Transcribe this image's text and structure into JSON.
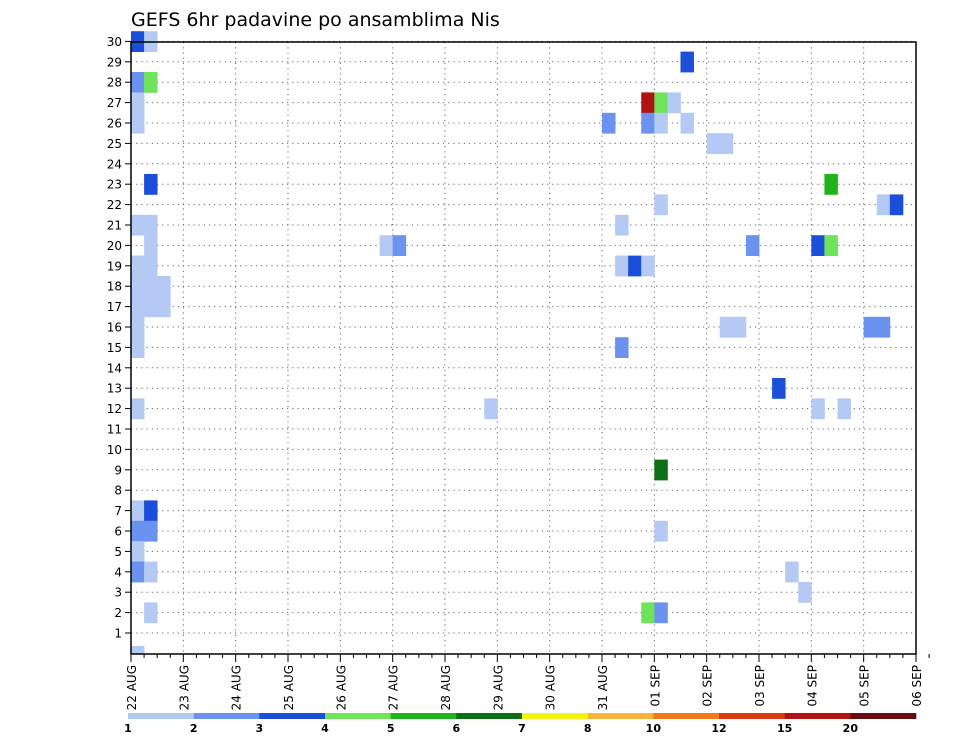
{
  "chart_data": {
    "type": "heatmap",
    "title": "GEFS 6hr padavine po ansamblima Nis",
    "xlabel": "",
    "ylabel": "",
    "x_ticks": [
      "22 AUG",
      "23 AUG",
      "24 AUG",
      "25 AUG",
      "26 AUG",
      "27 AUG",
      "28 AUG",
      "29 AUG",
      "30 AUG",
      "31 AUG",
      "01 SEP",
      "02 SEP",
      "03 SEP",
      "04 SEP",
      "05 SEP",
      "06 SEP"
    ],
    "y_ticks": [
      1,
      2,
      3,
      4,
      5,
      6,
      7,
      8,
      9,
      10,
      11,
      12,
      13,
      14,
      15,
      16,
      17,
      18,
      19,
      20,
      21,
      22,
      23,
      24,
      25,
      26,
      27,
      28,
      29,
      30
    ],
    "steps_per_day": 4,
    "num_steps": 61,
    "ylim": [
      0,
      30
    ],
    "grid": true,
    "colorbar": {
      "labels": [
        "1",
        "2",
        "3",
        "4",
        "5",
        "6",
        "7",
        "8",
        "10",
        "12",
        "15",
        "20"
      ],
      "colors": [
        "#b5c9f5",
        "#6b92ee",
        "#1c4fd9",
        "#6fe45a",
        "#1fb41c",
        "#0d6f14",
        "#f4f20e",
        "#f8b43a",
        "#f37a1a",
        "#e03a13",
        "#b01312",
        "#6b0a0c"
      ]
    },
    "cells": [
      [
        0,
        30,
        3
      ],
      [
        1,
        30,
        1
      ],
      [
        0,
        28,
        2
      ],
      [
        1,
        28,
        4
      ],
      [
        0,
        27,
        1
      ],
      [
        0,
        26,
        1
      ],
      [
        1,
        23,
        3
      ],
      [
        0,
        21,
        1
      ],
      [
        1,
        21,
        1
      ],
      [
        1,
        20,
        1
      ],
      [
        1,
        19,
        1
      ],
      [
        0,
        19,
        1
      ],
      [
        0,
        18,
        1
      ],
      [
        1,
        18,
        1
      ],
      [
        2,
        18,
        1
      ],
      [
        0,
        17,
        1
      ],
      [
        1,
        17,
        1
      ],
      [
        2,
        17,
        1
      ],
      [
        0,
        16,
        1
      ],
      [
        0,
        15,
        1
      ],
      [
        0,
        12,
        1
      ],
      [
        0,
        7,
        1
      ],
      [
        1,
        7,
        3
      ],
      [
        0,
        6,
        2
      ],
      [
        1,
        6,
        2
      ],
      [
        0,
        5,
        1
      ],
      [
        0,
        4,
        2
      ],
      [
        1,
        4,
        1
      ],
      [
        1,
        2,
        1
      ],
      [
        0,
        0,
        1
      ],
      [
        19,
        20,
        1
      ],
      [
        20,
        20,
        2
      ],
      [
        27,
        12,
        1
      ],
      [
        36,
        26,
        2
      ],
      [
        37,
        21,
        1
      ],
      [
        37,
        19,
        1
      ],
      [
        38,
        19,
        3
      ],
      [
        39,
        19,
        1
      ],
      [
        37,
        15,
        2
      ],
      [
        39,
        27,
        11
      ],
      [
        40,
        27,
        4
      ],
      [
        41,
        27,
        1
      ],
      [
        39,
        26,
        2
      ],
      [
        40,
        26,
        1
      ],
      [
        40,
        22,
        1
      ],
      [
        40,
        9,
        6
      ],
      [
        40,
        6,
        1
      ],
      [
        39,
        2,
        4
      ],
      [
        40,
        2,
        2
      ],
      [
        42,
        29,
        3
      ],
      [
        42,
        26,
        1
      ],
      [
        44,
        25,
        1
      ],
      [
        45,
        25,
        1
      ],
      [
        45,
        16,
        1
      ],
      [
        46,
        16,
        1
      ],
      [
        47,
        20,
        2
      ],
      [
        49,
        13,
        3
      ],
      [
        50,
        4,
        1
      ],
      [
        51,
        3,
        1
      ],
      [
        52,
        20,
        3
      ],
      [
        53,
        20,
        4
      ],
      [
        52,
        12,
        1
      ],
      [
        53,
        23,
        5
      ],
      [
        54,
        12,
        1
      ],
      [
        56,
        16,
        2
      ],
      [
        57,
        16,
        2
      ],
      [
        57,
        22,
        1
      ],
      [
        58,
        22,
        3
      ]
    ]
  }
}
